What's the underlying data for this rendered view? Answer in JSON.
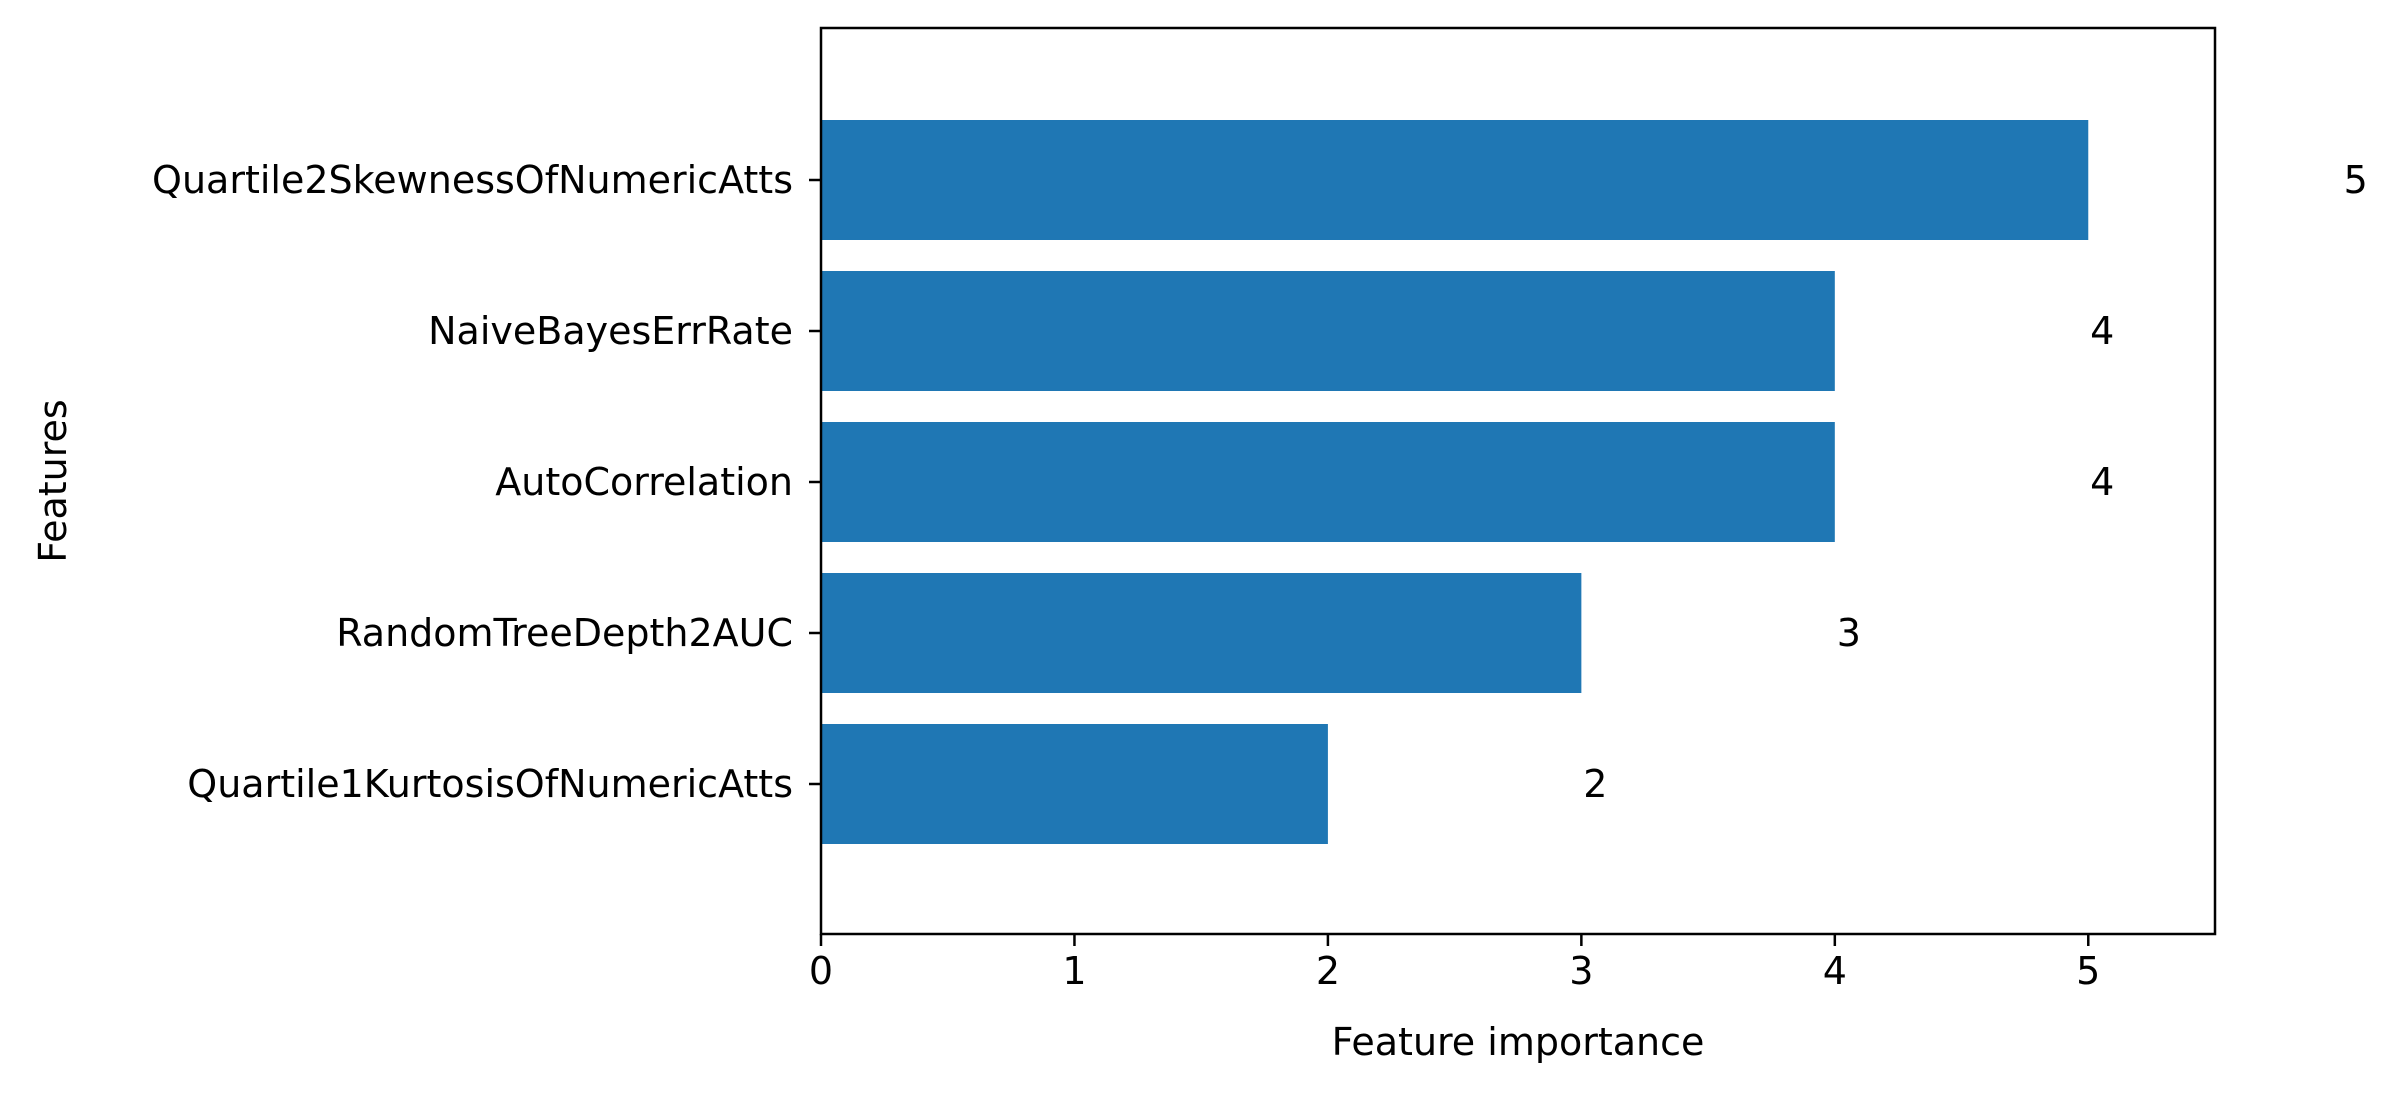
{
  "chart_data": {
    "type": "bar",
    "orientation": "horizontal",
    "categories": [
      "Quartile2SkewnessOfNumericAtts",
      "NaiveBayesErrRate",
      "AutoCorrelation",
      "RandomTreeDepth2AUC",
      "Quartile1KurtosisOfNumericAtts"
    ],
    "values": [
      5,
      4,
      4,
      3,
      2
    ],
    "data_labels": [
      "5",
      "4",
      "4",
      "3",
      "2"
    ],
    "xlabel": "Feature importance",
    "ylabel": "Features",
    "xlim": [
      0,
      5.5
    ],
    "xticks": [
      0,
      1,
      2,
      3,
      4,
      5
    ],
    "xtick_labels": [
      "0",
      "1",
      "2",
      "3",
      "4",
      "5"
    ],
    "grid": false,
    "bar_color": "#1f77b4"
  }
}
